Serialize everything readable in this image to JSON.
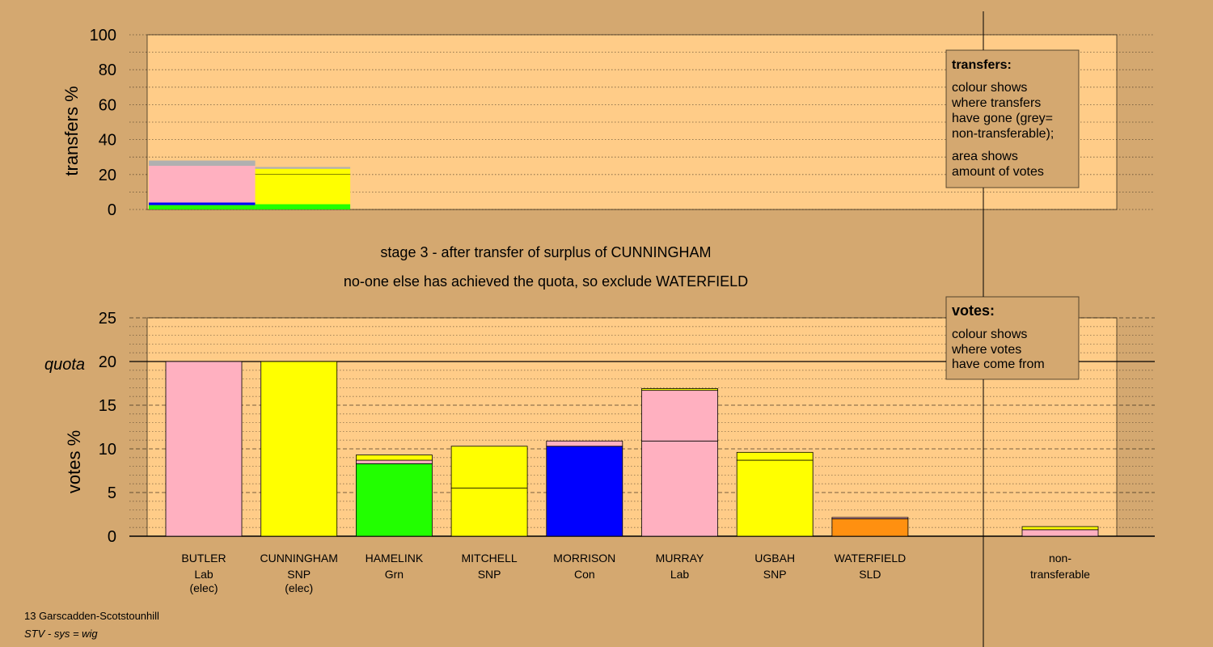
{
  "title_line1": "stage 3 - after transfer of surplus of CUNNINGHAM",
  "title_line2": "no-one else has achieved the quota, so exclude WATERFIELD",
  "footer_line1": "13 Garscadden-Scotstounhill",
  "footer_line2": "STV - sys = wig",
  "transfers_legend": {
    "title": "transfers:",
    "lines1": [
      "colour shows",
      "where transfers",
      "have gone (grey=",
      "non-transferable);"
    ],
    "lines2": [
      "area shows",
      "amount of votes"
    ]
  },
  "votes_legend": {
    "title": "votes:",
    "lines": [
      "colour shows",
      "where votes",
      "have come from"
    ]
  },
  "colors": {
    "background": "#d4a870",
    "plot_bg": "#ffcc88",
    "Lab": "#ffb0c0",
    "SNP": "#ffff00",
    "Grn": "#22ff00",
    "Con": "#0000ff",
    "SLD": "#ff9010",
    "nontransferable": "#b0b0b0"
  },
  "chart_data": [
    {
      "type": "bar",
      "name": "transfers",
      "ylabel": "transfers %",
      "ylim": [
        0,
        100
      ],
      "yticks": [
        0,
        20,
        40,
        60,
        80,
        100
      ],
      "bars": [
        {
          "from": "BUTLER",
          "surplus_pct": 28.0,
          "segments": [
            {
              "party": "Grn",
              "value": 2.5
            },
            {
              "party": "Con",
              "value": 1.5
            },
            {
              "party": "Lab",
              "value": 21.0
            },
            {
              "party": "nontransferable",
              "value": 3.0
            }
          ]
        },
        {
          "from": "CUNNINGHAM",
          "surplus_pct": 25.0,
          "segments": [
            {
              "party": "Grn",
              "value": 3.0
            },
            {
              "party": "SNP",
              "value": 17.3
            },
            {
              "party": "SNP",
              "value": 3.0
            },
            {
              "party": "nontransferable",
              "value": 1.0
            }
          ]
        }
      ]
    },
    {
      "type": "bar",
      "name": "votes",
      "ylabel": "votes %",
      "quota_label": "quota",
      "quota": 20,
      "ylim": [
        0,
        25
      ],
      "yticks": [
        0,
        5,
        10,
        15,
        20,
        25
      ],
      "candidates": [
        {
          "name": "BUTLER",
          "party": "Lab",
          "note": "(elec)",
          "segments": [
            {
              "party": "Lab",
              "value": 20.0
            }
          ]
        },
        {
          "name": "CUNNINGHAM",
          "party": "SNP",
          "note": "(elec)",
          "segments": [
            {
              "party": "SNP",
              "value": 20.0
            }
          ]
        },
        {
          "name": "HAMELINK",
          "party": "Grn",
          "note": "",
          "segments": [
            {
              "party": "Grn",
              "value": 8.3
            },
            {
              "party": "Lab",
              "value": 0.4
            },
            {
              "party": "SNP",
              "value": 0.6
            }
          ]
        },
        {
          "name": "MITCHELL",
          "party": "SNP",
          "note": "",
          "segments": [
            {
              "party": "SNP",
              "value": 5.5
            },
            {
              "party": "SNP",
              "value": 4.8
            }
          ]
        },
        {
          "name": "MORRISON",
          "party": "Con",
          "note": "",
          "segments": [
            {
              "party": "Con",
              "value": 10.3
            },
            {
              "party": "Lab",
              "value": 0.6
            }
          ]
        },
        {
          "name": "MURRAY",
          "party": "Lab",
          "note": "",
          "segments": [
            {
              "party": "Lab",
              "value": 10.9
            },
            {
              "party": "Lab",
              "value": 5.8
            },
            {
              "party": "SNP",
              "value": 0.2
            }
          ]
        },
        {
          "name": "UGBAH",
          "party": "SNP",
          "note": "",
          "segments": [
            {
              "party": "SNP",
              "value": 8.7
            },
            {
              "party": "SNP",
              "value": 0.9
            }
          ]
        },
        {
          "name": "WATERFIELD",
          "party": "SLD",
          "note": "",
          "segments": [
            {
              "party": "SLD",
              "value": 2.0
            },
            {
              "party": "Lab",
              "value": 0.15
            }
          ]
        }
      ],
      "nontransferable": {
        "label_lines": [
          "non-",
          "transferable"
        ],
        "segments": [
          {
            "party": "Lab",
            "value": 0.75
          },
          {
            "party": "SNP",
            "value": 0.35
          }
        ]
      }
    }
  ]
}
